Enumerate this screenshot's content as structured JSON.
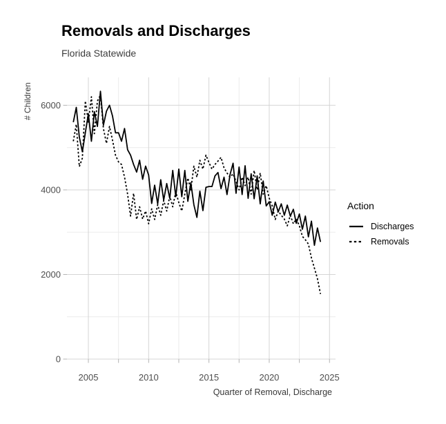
{
  "chart_data": {
    "type": "line",
    "title": "Removals and Discharges",
    "subtitle": "Florida Statewide",
    "xlabel": "Quarter of Removal, Discharge",
    "ylabel": "# Children",
    "x_start": 2003.75,
    "x_step": 0.25,
    "xlim": [
      2003.225,
      2025.5
    ],
    "ylim": [
      0,
      6660
    ],
    "x_ticks_major": [
      2005,
      2010,
      2015,
      2020,
      2025
    ],
    "x_ticks_minor": [
      2007.5,
      2012.5,
      2017.5,
      2022.5
    ],
    "y_ticks_major": [
      0,
      2000,
      4000,
      6000
    ],
    "y_ticks_minor": [
      1000,
      3000,
      5000
    ],
    "grid": true,
    "legend": {
      "title": "Action",
      "position": "right",
      "items": [
        {
          "label": "Discharges",
          "line_style": "solid"
        },
        {
          "label": "Removals",
          "line_style": "dashed"
        }
      ]
    },
    "colors": {
      "line": "#000000",
      "grid_major": "#d4d4d4",
      "grid_minor": "#ebebeb",
      "tick_mark": "#b3b3b3",
      "axis_text": "#4d4d4d"
    },
    "series": [
      {
        "name": "Discharges",
        "style": "solid",
        "color": "#000000",
        "values": [
          5600,
          5950,
          5250,
          4900,
          5350,
          5800,
          5150,
          5850,
          5500,
          6330,
          5530,
          5860,
          6000,
          5750,
          5350,
          5350,
          5150,
          5450,
          4950,
          4820,
          4600,
          4420,
          4700,
          4250,
          4560,
          4350,
          3680,
          4110,
          3670,
          4240,
          3760,
          4150,
          3800,
          4460,
          3840,
          4490,
          3840,
          4460,
          3730,
          4170,
          3650,
          3350,
          3970,
          3510,
          4060,
          4080,
          4080,
          4330,
          4410,
          4030,
          4300,
          3890,
          4360,
          4630,
          3920,
          4540,
          3890,
          4570,
          3800,
          4380,
          3790,
          4330,
          3670,
          4210,
          3620,
          3720,
          3400,
          3710,
          3480,
          3670,
          3400,
          3640,
          3380,
          3540,
          3210,
          3430,
          3070,
          3380,
          2890,
          3260,
          2690,
          3100,
          2770
        ]
      },
      {
        "name": "Removals",
        "style": "dashed",
        "color": "#000000",
        "values": [
          5150,
          5550,
          4550,
          4750,
          6100,
          5600,
          6200,
          5330,
          6100,
          6240,
          5450,
          5100,
          5500,
          5180,
          4820,
          4660,
          4600,
          4300,
          3900,
          3380,
          3920,
          3300,
          3600,
          3310,
          3500,
          3200,
          3550,
          3300,
          3650,
          3400,
          3750,
          3500,
          3850,
          3600,
          3950,
          3700,
          3500,
          3900,
          4280,
          4000,
          4560,
          4300,
          4700,
          4490,
          4820,
          4650,
          4490,
          4600,
          4680,
          4770,
          4520,
          4400,
          4300,
          4380,
          4200,
          4000,
          4300,
          4100,
          4300,
          3900,
          4460,
          4000,
          4400,
          3900,
          4100,
          3800,
          3620,
          3300,
          3500,
          3400,
          3310,
          3150,
          3400,
          3200,
          3310,
          3150,
          2900,
          2820,
          2720,
          2390,
          2150,
          1900,
          1540
        ]
      }
    ]
  }
}
